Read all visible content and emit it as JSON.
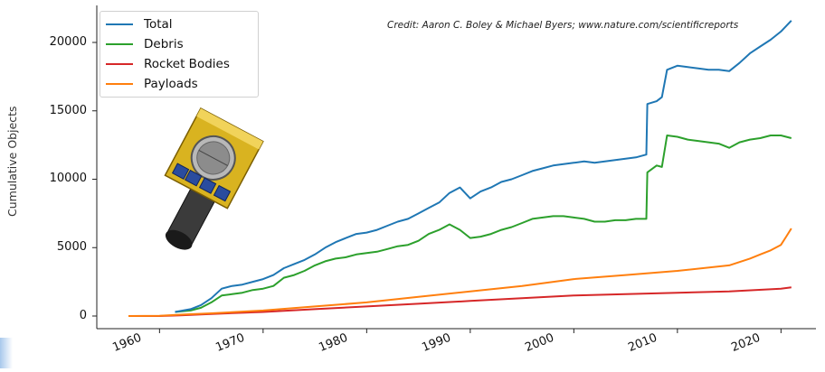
{
  "credit": "Credit: Aaron C. Boley & Michael Byers; www.nature.com/scientificreports",
  "chart_data": {
    "type": "line",
    "title": "",
    "xlabel": "",
    "ylabel": "Cumulative Objects",
    "xlim": [
      1955,
      2022
    ],
    "ylim": [
      -1000,
      22500
    ],
    "xticks": [
      "1960",
      "1970",
      "1980",
      "1990",
      "2000",
      "2010",
      "2020"
    ],
    "yticks": [
      "0",
      "5000",
      "10000",
      "15000",
      "20000"
    ],
    "legend_position": "top-left",
    "series": [
      {
        "name": "Total",
        "color": "#1f77b4",
        "x": [
          1961.5,
          1963,
          1964,
          1965,
          1966,
          1967,
          1968,
          1969,
          1970,
          1971,
          1972,
          1973,
          1974,
          1975,
          1976,
          1977,
          1978,
          1979,
          1980,
          1981,
          1982,
          1983,
          1984,
          1985,
          1986,
          1987,
          1988,
          1989,
          1990,
          1991,
          1992,
          1993,
          1994,
          1995,
          1996,
          1997,
          1998,
          1999,
          2000,
          2001,
          2002,
          2003,
          2004,
          2005,
          2006,
          2007,
          2007.1,
          2008,
          2008.5,
          2009,
          2010,
          2011,
          2012,
          2013,
          2014,
          2015,
          2016,
          2017,
          2018,
          2019,
          2020,
          2021
        ],
        "y": [
          300,
          500,
          800,
          1300,
          2000,
          2200,
          2300,
          2500,
          2700,
          3000,
          3500,
          3800,
          4100,
          4500,
          5000,
          5400,
          5700,
          6000,
          6100,
          6300,
          6600,
          6900,
          7100,
          7500,
          7900,
          8300,
          9000,
          9400,
          8600,
          9100,
          9400,
          9800,
          10000,
          10300,
          10600,
          10800,
          11000,
          11100,
          11200,
          11300,
          11200,
          11300,
          11400,
          11500,
          11600,
          11800,
          15500,
          15700,
          16000,
          18000,
          18300,
          18200,
          18100,
          18000,
          18000,
          17900,
          18500,
          19200,
          19700,
          20200,
          20800,
          21600
        ]
      },
      {
        "name": "Debris",
        "color": "#2ca02c",
        "x": [
          1961.5,
          1963,
          1964,
          1965,
          1966,
          1967,
          1968,
          1969,
          1970,
          1971,
          1972,
          1973,
          1974,
          1975,
          1976,
          1977,
          1978,
          1979,
          1980,
          1981,
          1982,
          1983,
          1984,
          1985,
          1986,
          1987,
          1988,
          1989,
          1990,
          1991,
          1992,
          1993,
          1994,
          1995,
          1996,
          1997,
          1998,
          1999,
          2000,
          2001,
          2002,
          2003,
          2004,
          2005,
          2006,
          2007,
          2007.1,
          2008,
          2008.5,
          2009,
          2010,
          2011,
          2012,
          2013,
          2014,
          2015,
          2016,
          2017,
          2018,
          2019,
          2020,
          2021
        ],
        "y": [
          300,
          400,
          600,
          1000,
          1500,
          1600,
          1700,
          1900,
          2000,
          2200,
          2800,
          3000,
          3300,
          3700,
          4000,
          4200,
          4300,
          4500,
          4600,
          4700,
          4900,
          5100,
          5200,
          5500,
          6000,
          6300,
          6700,
          6300,
          5700,
          5800,
          6000,
          6300,
          6500,
          6800,
          7100,
          7200,
          7300,
          7300,
          7200,
          7100,
          6900,
          6900,
          7000,
          7000,
          7100,
          7100,
          10500,
          11000,
          10900,
          13200,
          13100,
          12900,
          12800,
          12700,
          12600,
          12300,
          12700,
          12900,
          13000,
          13200,
          13200,
          13000
        ]
      },
      {
        "name": "Rocket Bodies",
        "color": "#d62728",
        "x": [
          1957,
          1960,
          1962,
          1965,
          1970,
          1975,
          1980,
          1985,
          1990,
          1995,
          2000,
          2005,
          2010,
          2015,
          2020,
          2021
        ],
        "y": [
          0,
          0,
          50,
          150,
          300,
          500,
          700,
          900,
          1100,
          1300,
          1500,
          1600,
          1700,
          1800,
          2000,
          2100
        ]
      },
      {
        "name": "Payloads",
        "color": "#ff7f0e",
        "x": [
          1957,
          1960,
          1962,
          1965,
          1970,
          1975,
          1980,
          1985,
          1990,
          1995,
          2000,
          2005,
          2010,
          2015,
          2017,
          2018,
          2019,
          2020,
          2020.5,
          2021
        ],
        "y": [
          0,
          10,
          100,
          200,
          400,
          700,
          1000,
          1400,
          1800,
          2200,
          2700,
          3000,
          3300,
          3700,
          4200,
          4500,
          4800,
          5200,
          5800,
          6400
        ]
      }
    ]
  }
}
